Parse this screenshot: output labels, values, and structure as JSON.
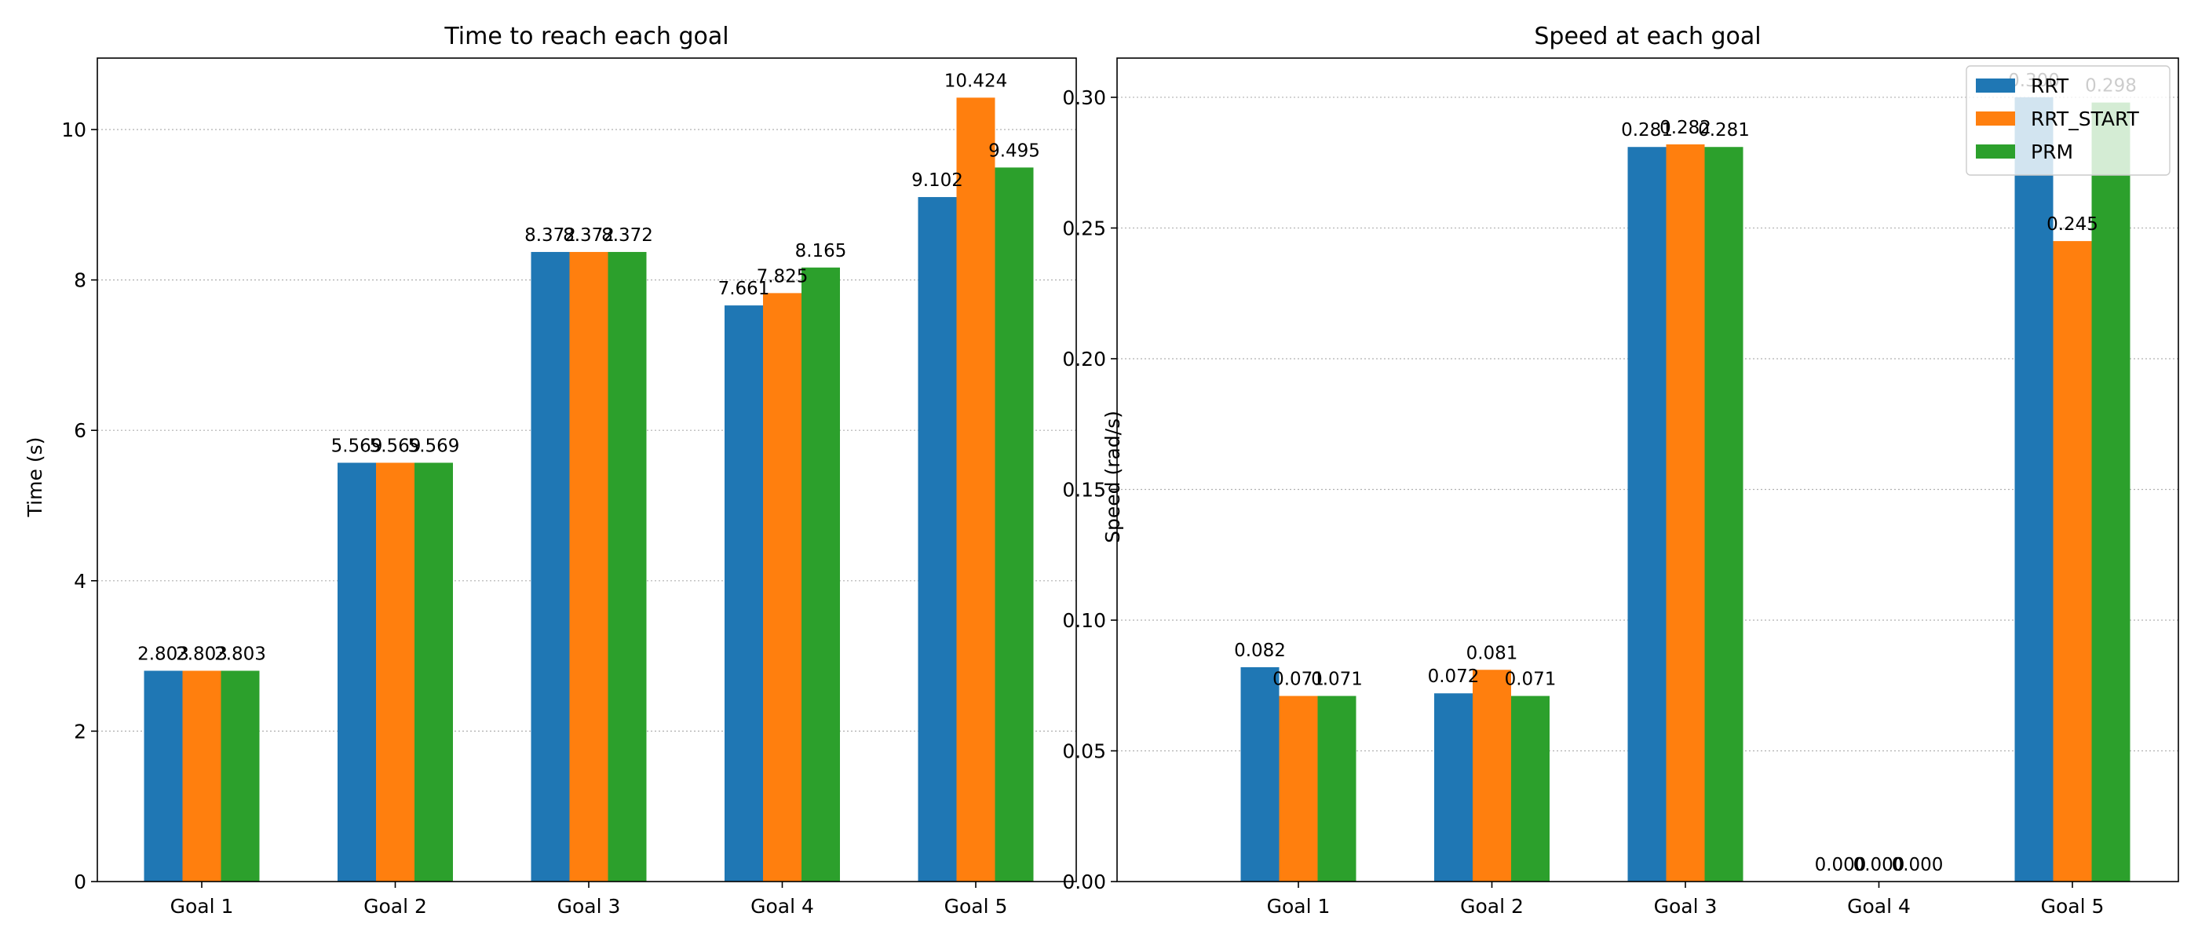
{
  "chart_data": [
    {
      "type": "bar",
      "title": "Time to reach each goal",
      "xlabel": "",
      "ylabel": "Time (s)",
      "categories": [
        "Goal 1",
        "Goal 2",
        "Goal 3",
        "Goal 4",
        "Goal 5"
      ],
      "series": [
        {
          "name": "RRT",
          "color": "#1f77b4",
          "values": [
            2.803,
            5.569,
            8.372,
            7.661,
            9.102
          ],
          "labels": [
            "2.803",
            "5.569",
            "8.372",
            "7.661",
            "9.102"
          ]
        },
        {
          "name": "RRT_START",
          "color": "#ff7f0e",
          "values": [
            2.803,
            5.569,
            8.372,
            7.825,
            10.424
          ],
          "labels": [
            "2.803",
            "5.569",
            "8.372",
            "7.825",
            "10.424"
          ]
        },
        {
          "name": "PRM",
          "color": "#2ca02c",
          "values": [
            2.803,
            5.569,
            8.372,
            8.165,
            9.495
          ],
          "labels": [
            "2.803",
            "5.569",
            "8.372",
            "8.165",
            "9.495"
          ]
        }
      ],
      "ylim": [
        0,
        10.95
      ],
      "yticks": [
        0,
        2,
        4,
        6,
        8,
        10
      ],
      "ytick_labels": [
        "0",
        "2",
        "4",
        "6",
        "8",
        "10"
      ],
      "grid": "y-dotted",
      "legend": false
    },
    {
      "type": "bar",
      "title": "Speed at each goal",
      "xlabel": "",
      "ylabel": "Speed (rad/s)",
      "categories": [
        "Goal 1",
        "Goal 2",
        "Goal 3",
        "Goal 4",
        "Goal 5"
      ],
      "series": [
        {
          "name": "RRT",
          "color": "#1f77b4",
          "values": [
            0.082,
            0.072,
            0.281,
            0.0,
            0.3
          ],
          "labels": [
            "0.082",
            "0.072",
            "0.281",
            "0.000",
            "0.300"
          ]
        },
        {
          "name": "RRT_START",
          "color": "#ff7f0e",
          "values": [
            0.071,
            0.081,
            0.282,
            0.0,
            0.245
          ],
          "labels": [
            "0.071",
            "0.081",
            "0.282",
            "0.000",
            "0.245"
          ]
        },
        {
          "name": "PRM",
          "color": "#2ca02c",
          "values": [
            0.071,
            0.071,
            0.281,
            0.0,
            0.298
          ],
          "labels": [
            "0.071",
            "0.071",
            "0.281",
            "0.000",
            "0.298"
          ]
        }
      ],
      "ylim": [
        0,
        0.315
      ],
      "yticks": [
        0,
        0.05,
        0.1,
        0.15,
        0.2,
        0.25,
        0.3
      ],
      "ytick_labels": [
        "0.00",
        "0.05",
        "0.10",
        "0.15",
        "0.20",
        "0.25",
        "0.30"
      ],
      "grid": "y-dotted",
      "legend": "top-right"
    }
  ]
}
